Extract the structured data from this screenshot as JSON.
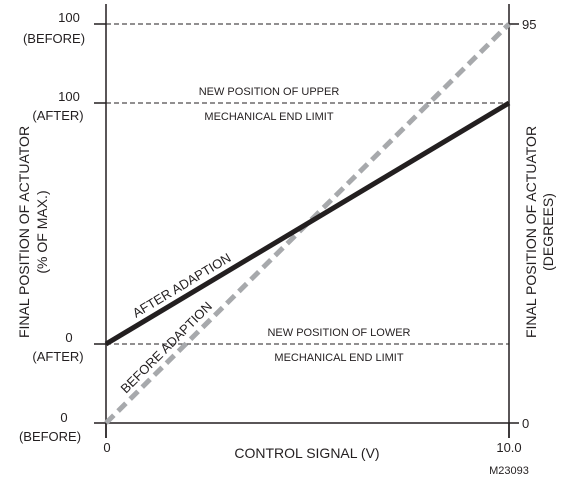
{
  "figure_id": "M23093",
  "x_axis": {
    "title": "CONTROL SIGNAL (V)",
    "min_label": "0",
    "max_label": "10.0",
    "range": [
      0,
      10
    ]
  },
  "left_axis": {
    "title_line1": "FINAL POSITION OF ACTUATOR",
    "title_line2": "(% OF MAX.)",
    "labels": [
      {
        "value": "100",
        "note": "(BEFORE)"
      },
      {
        "value": "100",
        "note": "(AFTER)"
      },
      {
        "value": "0",
        "note": "(AFTER)"
      },
      {
        "value": "0",
        "note": "(BEFORE)"
      }
    ]
  },
  "right_axis": {
    "title_line1": "FINAL POSITION OF ACTUATOR",
    "title_line2": "(DEGREES)",
    "top_label": "95",
    "bottom_label": "0"
  },
  "annotations": {
    "upper_line1": "NEW POSITION OF UPPER",
    "upper_line2": "MECHANICAL END LIMIT",
    "lower_line1": "NEW POSITION OF LOWER",
    "lower_line2": "MECHANICAL END LIMIT"
  },
  "lines": {
    "after": {
      "label": "AFTER ADAPTION",
      "color": "#231f20",
      "from_v": 0,
      "to_v": 10
    },
    "before": {
      "label": "BEFORE ADAPTION",
      "color": "#a7a9ac",
      "from_v": 0,
      "to_v": 10
    }
  }
}
